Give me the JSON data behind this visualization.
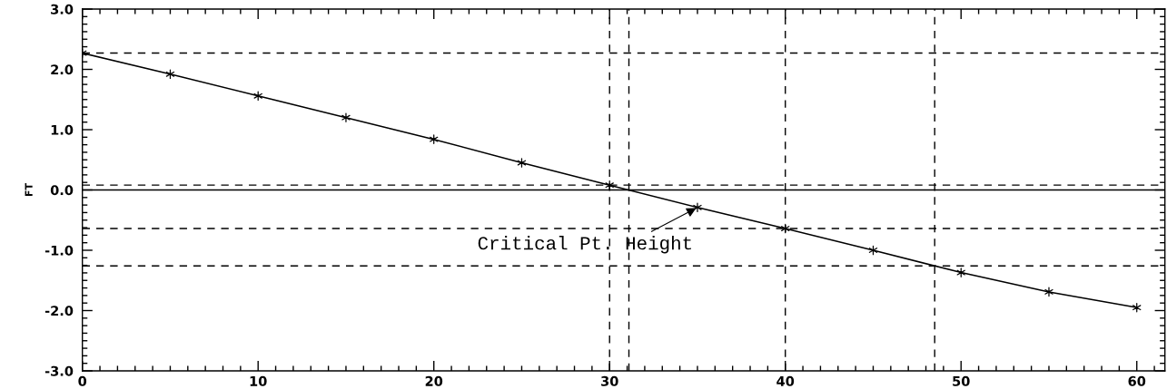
{
  "chart_data": {
    "type": "line",
    "ylabel": "FT",
    "x": [
      0,
      5,
      10,
      15,
      20,
      25,
      30,
      35,
      40,
      45,
      50,
      55,
      60
    ],
    "values": [
      2.27,
      1.92,
      1.56,
      1.2,
      0.84,
      0.45,
      0.08,
      -0.29,
      -0.64,
      -1.0,
      -1.37,
      -1.69,
      -1.95
    ],
    "color": "#000000",
    "marker": "cross",
    "line_style": "solid",
    "xlim": [
      0,
      61.6
    ],
    "ylim": [
      -3,
      3
    ],
    "xticks": [
      0,
      {
        "value": 1,
        "label": null
      },
      {
        "value": 2,
        "label": null
      },
      {
        "value": 3,
        "label": null
      },
      {
        "value": 4,
        "label": null
      },
      {
        "value": 5,
        "label": null
      },
      {
        "value": 6,
        "label": null
      },
      {
        "value": 7,
        "label": null
      },
      {
        "value": 8,
        "label": null
      },
      {
        "value": 9,
        "label": null
      },
      10,
      {
        "value": 11,
        "label": null
      },
      {
        "value": 12,
        "label": null
      },
      {
        "value": 13,
        "label": null
      },
      {
        "value": 14,
        "label": null
      },
      {
        "value": 15,
        "label": null
      },
      {
        "value": 16,
        "label": null
      },
      {
        "value": 17,
        "label": null
      },
      {
        "value": 18,
        "label": null
      },
      {
        "value": 19,
        "label": null
      },
      20,
      {
        "value": 21,
        "label": null
      },
      {
        "value": 22,
        "label": null
      },
      {
        "value": 23,
        "label": null
      },
      {
        "value": 24,
        "label": null
      },
      {
        "value": 25,
        "label": null
      },
      {
        "value": 26,
        "label": null
      },
      {
        "value": 27,
        "label": null
      },
      {
        "value": 28,
        "label": null
      },
      {
        "value": 29,
        "label": null
      },
      30,
      {
        "value": 31,
        "label": null
      },
      {
        "value": 32,
        "label": null
      },
      {
        "value": 33,
        "label": null
      },
      {
        "value": 34,
        "label": null
      },
      {
        "value": 35,
        "label": null
      },
      {
        "value": 36,
        "label": null
      },
      {
        "value": 37,
        "label": null
      },
      {
        "value": 38,
        "label": null
      },
      {
        "value": 39,
        "label": null
      },
      40,
      {
        "value": 41,
        "label": null
      },
      {
        "value": 42,
        "label": null
      },
      {
        "value": 43,
        "label": null
      },
      {
        "value": 44,
        "label": null
      },
      {
        "value": 45,
        "label": null
      },
      {
        "value": 46,
        "label": null
      },
      {
        "value": 47,
        "label": null
      },
      {
        "value": 48,
        "label": null
      },
      {
        "value": 49,
        "label": null
      },
      50,
      {
        "value": 51,
        "label": null
      },
      {
        "value": 52,
        "label": null
      },
      {
        "value": 53,
        "label": null
      },
      {
        "value": 54,
        "label": null
      },
      {
        "value": 55,
        "label": null
      },
      {
        "value": 56,
        "label": null
      },
      {
        "value": 57,
        "label": null
      },
      {
        "value": 58,
        "label": null
      },
      {
        "value": 59,
        "label": null
      },
      60,
      {
        "value": 61,
        "label": null
      }
    ],
    "yticks": [
      {
        "value": -3,
        "label": "-3.0"
      },
      {
        "value": -2.875,
        "label": null
      },
      {
        "value": -2.75,
        "label": null
      },
      {
        "value": -2.625,
        "label": null
      },
      {
        "value": -2.5,
        "label": null
      },
      {
        "value": -2.375,
        "label": null
      },
      {
        "value": -2.25,
        "label": null
      },
      {
        "value": -2.125,
        "label": null
      },
      {
        "value": -2,
        "label": "-2.0"
      },
      {
        "value": -1.875,
        "label": null
      },
      {
        "value": -1.75,
        "label": null
      },
      {
        "value": -1.625,
        "label": null
      },
      {
        "value": -1.5,
        "label": null
      },
      {
        "value": -1.375,
        "label": null
      },
      {
        "value": -1.25,
        "label": null
      },
      {
        "value": -1.125,
        "label": null
      },
      {
        "value": -1,
        "label": "-1.0"
      },
      {
        "value": -0.875,
        "label": null
      },
      {
        "value": -0.75,
        "label": null
      },
      {
        "value": -0.625,
        "label": null
      },
      {
        "value": -0.5,
        "label": null
      },
      {
        "value": -0.375,
        "label": null
      },
      {
        "value": -0.25,
        "label": null
      },
      {
        "value": -0.125,
        "label": null
      },
      {
        "value": 0,
        "label": "0.0"
      },
      {
        "value": 0.125,
        "label": null
      },
      {
        "value": 0.25,
        "label": null
      },
      {
        "value": 0.375,
        "label": null
      },
      {
        "value": 0.5,
        "label": null
      },
      {
        "value": 0.625,
        "label": null
      },
      {
        "value": 0.75,
        "label": null
      },
      {
        "value": 0.875,
        "label": null
      },
      {
        "value": 1,
        "label": "1.0"
      },
      {
        "value": 1.125,
        "label": null
      },
      {
        "value": 1.25,
        "label": null
      },
      {
        "value": 1.375,
        "label": null
      },
      {
        "value": 1.5,
        "label": null
      },
      {
        "value": 1.625,
        "label": null
      },
      {
        "value": 1.75,
        "label": null
      },
      {
        "value": 1.875,
        "label": null
      },
      {
        "value": 2,
        "label": "2.0"
      },
      {
        "value": 2.125,
        "label": null
      },
      {
        "value": 2.25,
        "label": null
      },
      {
        "value": 2.375,
        "label": null
      },
      {
        "value": 2.5,
        "label": null
      },
      {
        "value": 2.625,
        "label": null
      },
      {
        "value": 2.75,
        "label": null
      },
      {
        "value": 2.875,
        "label": null
      },
      {
        "value": 3,
        "label": "3.0"
      }
    ],
    "ref_lines": [
      {
        "axis": "y",
        "value": 2.27,
        "line_style": "dashed"
      },
      {
        "axis": "y",
        "value": 0.08,
        "line_style": "dashed"
      },
      {
        "axis": "y",
        "value": 0,
        "line_style": "solid"
      },
      {
        "axis": "y",
        "value": -0.64,
        "line_style": "dashed"
      },
      {
        "axis": "y",
        "value": -1.26,
        "line_style": "dashed"
      },
      {
        "axis": "x",
        "value": 30,
        "line_style": "dashed"
      },
      {
        "axis": "x",
        "value": 31.1,
        "line_style": "dashed"
      },
      {
        "axis": "x",
        "value": 40,
        "line_style": "dashed"
      },
      {
        "axis": "x",
        "value": 48.5,
        "line_style": "dashed"
      }
    ],
    "annotations": [
      {
        "text": "Critical Pt. Height",
        "x": 35,
        "y": -0.29
      }
    ]
  }
}
